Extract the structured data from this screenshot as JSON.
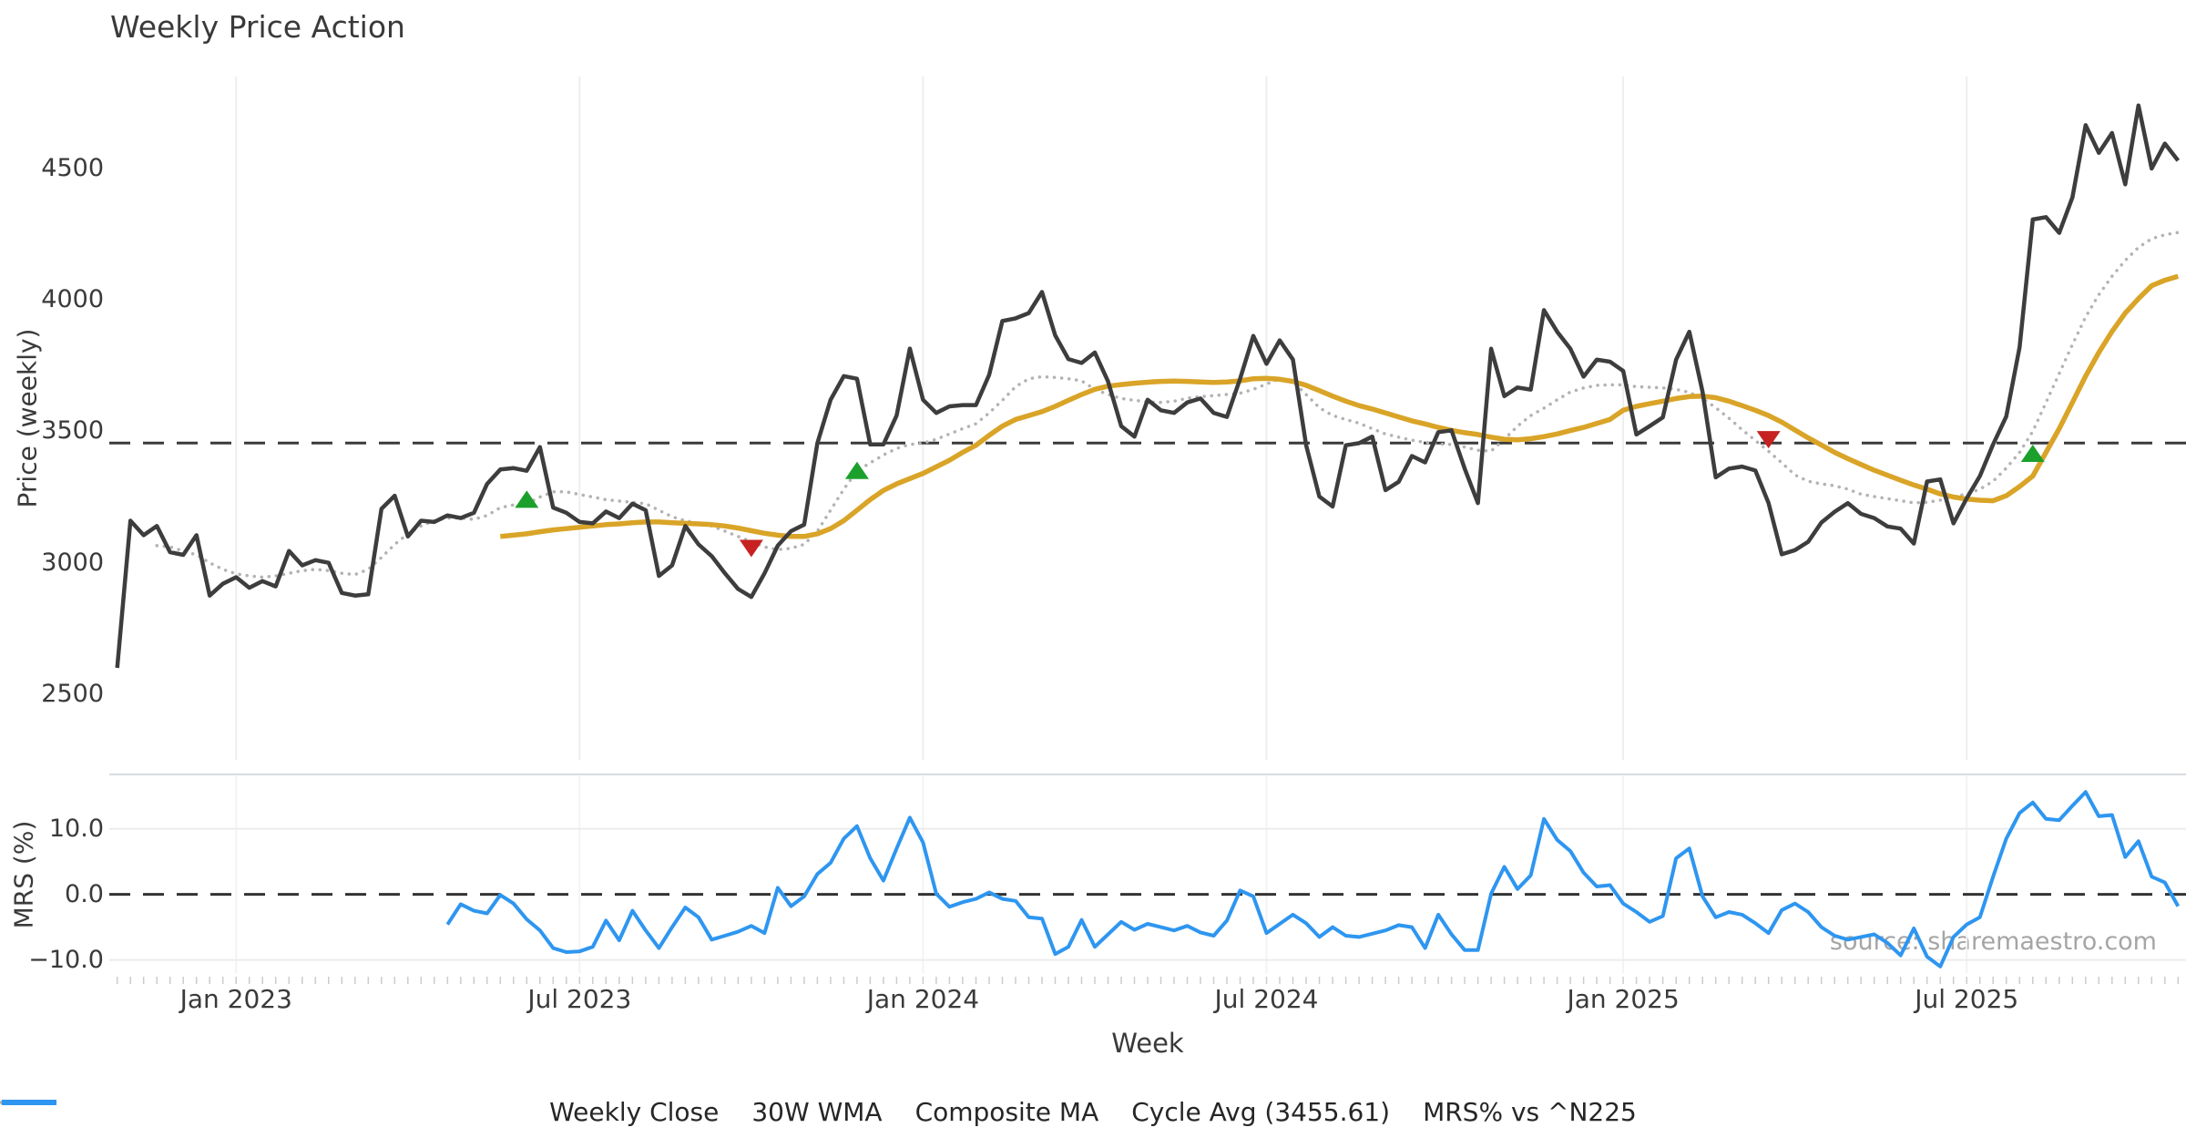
{
  "chart_data": {
    "type": "line",
    "title": "Weekly Price Action",
    "xlabel": "Week",
    "watermark": "source: sharemaestro.com",
    "x_ticks": [
      {
        "week": 9,
        "label": "Jan 2023"
      },
      {
        "week": 35,
        "label": "Jul 2023"
      },
      {
        "week": 61,
        "label": "Jan 2024"
      },
      {
        "week": 87,
        "label": "Jul 2024"
      },
      {
        "week": 114,
        "label": "Jan 2025"
      },
      {
        "week": 140,
        "label": "Jul 2025"
      }
    ],
    "price_panel": {
      "ylabel": "Price (weekly)",
      "ylim": [
        2250,
        4850
      ],
      "yticks": [
        {
          "value": 2500,
          "label": "2500"
        },
        {
          "value": 3000,
          "label": "3000"
        },
        {
          "value": 3500,
          "label": "3500"
        },
        {
          "value": 4000,
          "label": "4000"
        },
        {
          "value": 4500,
          "label": "4500"
        }
      ],
      "cycle_avg": 3455.61,
      "series": [
        {
          "name": "Weekly Close",
          "color": "#3d3d3d",
          "style": "solid",
          "width": 4.5,
          "start_week": 0,
          "values": [
            2600,
            3160,
            3105,
            3140,
            3040,
            3030,
            3105,
            2875,
            2920,
            2945,
            2905,
            2930,
            2910,
            3045,
            2990,
            3010,
            3000,
            2885,
            2875,
            2880,
            3205,
            3255,
            3100,
            3160,
            3155,
            3180,
            3170,
            3190,
            3300,
            3355,
            3360,
            3350,
            3440,
            3210,
            3190,
            3155,
            3150,
            3195,
            3170,
            3225,
            3200,
            2950,
            2990,
            3140,
            3070,
            3025,
            2960,
            2900,
            2870,
            2960,
            3065,
            3120,
            3145,
            3455,
            3620,
            3710,
            3700,
            3450,
            3450,
            3560,
            3815,
            3620,
            3570,
            3595,
            3600,
            3600,
            3715,
            3920,
            3930,
            3950,
            4030,
            3865,
            3775,
            3760,
            3800,
            3690,
            3520,
            3480,
            3620,
            3580,
            3570,
            3610,
            3625,
            3570,
            3555,
            3700,
            3863,
            3757,
            3846,
            3773,
            3447,
            3252,
            3214,
            3447,
            3455,
            3480,
            3276,
            3308,
            3406,
            3382,
            3497,
            3504,
            3358,
            3227,
            3814,
            3634,
            3667,
            3659,
            3961,
            3879,
            3814,
            3708,
            3773,
            3765,
            3730,
            3488,
            3520,
            3553,
            3773,
            3879,
            3651,
            3325,
            3358,
            3366,
            3351,
            3227,
            3032,
            3048,
            3080,
            3153,
            3194,
            3227,
            3186,
            3170,
            3138,
            3130,
            3073,
            3309,
            3317,
            3150,
            3245,
            3330,
            3450,
            3557,
            3820,
            4306,
            4315,
            4255,
            4390,
            4665,
            4560,
            4635,
            4440,
            4740,
            4500,
            4595,
            4530
          ]
        },
        {
          "name": "30W WMA",
          "color": "#d9a427",
          "style": "solid",
          "width": 5.5,
          "start_week": 29,
          "values": [
            3100,
            3105,
            3110,
            3118,
            3125,
            3130,
            3135,
            3140,
            3145,
            3148,
            3152,
            3155,
            3155,
            3152,
            3150,
            3148,
            3145,
            3140,
            3132,
            3122,
            3112,
            3105,
            3100,
            3100,
            3110,
            3130,
            3160,
            3200,
            3240,
            3275,
            3300,
            3320,
            3340,
            3365,
            3390,
            3420,
            3447,
            3485,
            3520,
            3545,
            3560,
            3575,
            3595,
            3618,
            3640,
            3660,
            3672,
            3678,
            3683,
            3687,
            3690,
            3691,
            3690,
            3688,
            3686,
            3688,
            3692,
            3700,
            3702,
            3698,
            3690,
            3675,
            3655,
            3634,
            3615,
            3598,
            3585,
            3570,
            3555,
            3540,
            3528,
            3515,
            3504,
            3495,
            3488,
            3478,
            3470,
            3468,
            3472,
            3480,
            3490,
            3503,
            3515,
            3530,
            3545,
            3580,
            3595,
            3605,
            3615,
            3625,
            3632,
            3634,
            3628,
            3615,
            3598,
            3580,
            3560,
            3535,
            3505,
            3475,
            3448,
            3420,
            3396,
            3374,
            3352,
            3333,
            3314,
            3296,
            3280,
            3262,
            3250,
            3242,
            3238,
            3236,
            3255,
            3290,
            3330,
            3420,
            3510,
            3610,
            3710,
            3800,
            3880,
            3950,
            4005,
            4054,
            4075,
            4090
          ]
        },
        {
          "name": "Composite MA",
          "color": "#b3b3b3",
          "style": "dotted",
          "width": 3.5,
          "start_week": 3,
          "values": [
            3065,
            3060,
            3045,
            3030,
            3000,
            2975,
            2958,
            2950,
            2945,
            2950,
            2960,
            2970,
            2975,
            2970,
            2960,
            2955,
            2975,
            3020,
            3070,
            3110,
            3140,
            3160,
            3170,
            3170,
            3165,
            3180,
            3210,
            3220,
            3224,
            3250,
            3270,
            3270,
            3260,
            3250,
            3240,
            3235,
            3230,
            3225,
            3200,
            3175,
            3160,
            3150,
            3140,
            3120,
            3100,
            3080,
            3060,
            3050,
            3055,
            3070,
            3120,
            3200,
            3280,
            3349,
            3380,
            3410,
            3435,
            3450,
            3455,
            3470,
            3490,
            3510,
            3529,
            3570,
            3618,
            3670,
            3700,
            3708,
            3705,
            3700,
            3692,
            3660,
            3640,
            3625,
            3618,
            3612,
            3610,
            3615,
            3626,
            3632,
            3636,
            3640,
            3645,
            3660,
            3680,
            3700,
            3690,
            3640,
            3590,
            3560,
            3545,
            3531,
            3510,
            3490,
            3478,
            3466,
            3458,
            3452,
            3450,
            3440,
            3428,
            3425,
            3470,
            3520,
            3560,
            3588,
            3620,
            3650,
            3665,
            3675,
            3677,
            3677,
            3670,
            3668,
            3665,
            3660,
            3648,
            3625,
            3590,
            3550,
            3506,
            3465,
            3424,
            3380,
            3334,
            3310,
            3300,
            3293,
            3280,
            3261,
            3252,
            3244,
            3236,
            3228,
            3230,
            3238,
            3250,
            3262,
            3280,
            3310,
            3360,
            3420,
            3500,
            3610,
            3720,
            3830,
            3935,
            4020,
            4090,
            4150,
            4200,
            4233,
            4248,
            4257
          ]
        }
      ],
      "buy_markers": [
        {
          "week": 31,
          "price": 3240
        },
        {
          "week": 56,
          "price": 3350
        },
        {
          "week": 145,
          "price": 3415
        }
      ],
      "sell_markers": [
        {
          "week": 48,
          "price": 3056
        },
        {
          "week": 125,
          "price": 3470
        }
      ],
      "buy_color": "#1ca02c",
      "sell_color": "#c62222"
    },
    "mrs_panel": {
      "ylabel": "MRS (%)",
      "ylim": [
        -12,
        18
      ],
      "yticks": [
        {
          "value": 10,
          "label": "10.0"
        },
        {
          "value": 0,
          "label": "0.0"
        },
        {
          "value": -10,
          "label": "−10.0"
        }
      ],
      "zero_line": 0,
      "series": {
        "name": "MRS% vs ^N225",
        "color": "#2e96f0",
        "width": 4,
        "start_week": 25,
        "values": [
          -4.6,
          -1.5,
          -2.5,
          -2.9,
          -0.1,
          -1.4,
          -3.8,
          -5.5,
          -8.2,
          -8.8,
          -8.7,
          -8.0,
          -4.0,
          -7.0,
          -2.5,
          -5.5,
          -8.2,
          -5.0,
          -2.0,
          -3.5,
          -6.9,
          -6.3,
          -5.7,
          -4.8,
          -5.9,
          1.0,
          -1.8,
          -0.3,
          3.1,
          4.8,
          8.5,
          10.4,
          5.5,
          2.1,
          7.0,
          11.7,
          7.9,
          0.1,
          -1.9,
          -1.2,
          -0.7,
          0.3,
          -0.7,
          -1.0,
          -3.5,
          -3.7,
          -9.1,
          -8.0,
          -3.9,
          -8.0,
          -6.1,
          -4.2,
          -5.4,
          -4.5,
          -5.0,
          -5.5,
          -4.8,
          -5.8,
          -6.3,
          -4.0,
          0.6,
          -0.3,
          -5.9,
          -4.5,
          -3.1,
          -4.4,
          -6.5,
          -5.0,
          -6.3,
          -6.5,
          -6.0,
          -5.5,
          -4.7,
          -5.0,
          -8.2,
          -3.1,
          -6.1,
          -8.5,
          -8.5,
          0.1,
          4.2,
          0.8,
          2.9,
          11.5,
          8.3,
          6.6,
          3.3,
          1.2,
          1.4,
          -1.4,
          -2.7,
          -4.2,
          -3.3,
          5.5,
          7.0,
          -0.3,
          -3.5,
          -2.7,
          -3.1,
          -4.4,
          -5.9,
          -2.4,
          -1.4,
          -2.7,
          -5.0,
          -6.3,
          -6.9,
          -6.5,
          -6.1,
          -7.4,
          -9.3,
          -5.2,
          -9.5,
          -11.0,
          -6.5,
          -4.6,
          -3.5,
          2.7,
          8.5,
          12.4,
          14.0,
          11.5,
          11.3,
          13.5,
          15.6,
          11.9,
          12.1,
          5.7,
          8.1,
          2.7,
          1.8,
          -1.8
        ]
      }
    },
    "legend": [
      {
        "label": "Weekly Close",
        "color": "#3d3d3d",
        "style": "solid"
      },
      {
        "label": "30W WMA",
        "color": "#d9a427",
        "style": "solid"
      },
      {
        "label": "Composite MA",
        "color": "#b3b3b3",
        "style": "dotted"
      },
      {
        "label": "Cycle Avg (3455.61)",
        "color": "#3d3d3d",
        "style": "dashed"
      },
      {
        "label": "MRS% vs ^N225",
        "color": "#2e96f0",
        "style": "solid"
      }
    ],
    "grid_color": "#edeef0",
    "spine_color": "#d8dbde"
  }
}
